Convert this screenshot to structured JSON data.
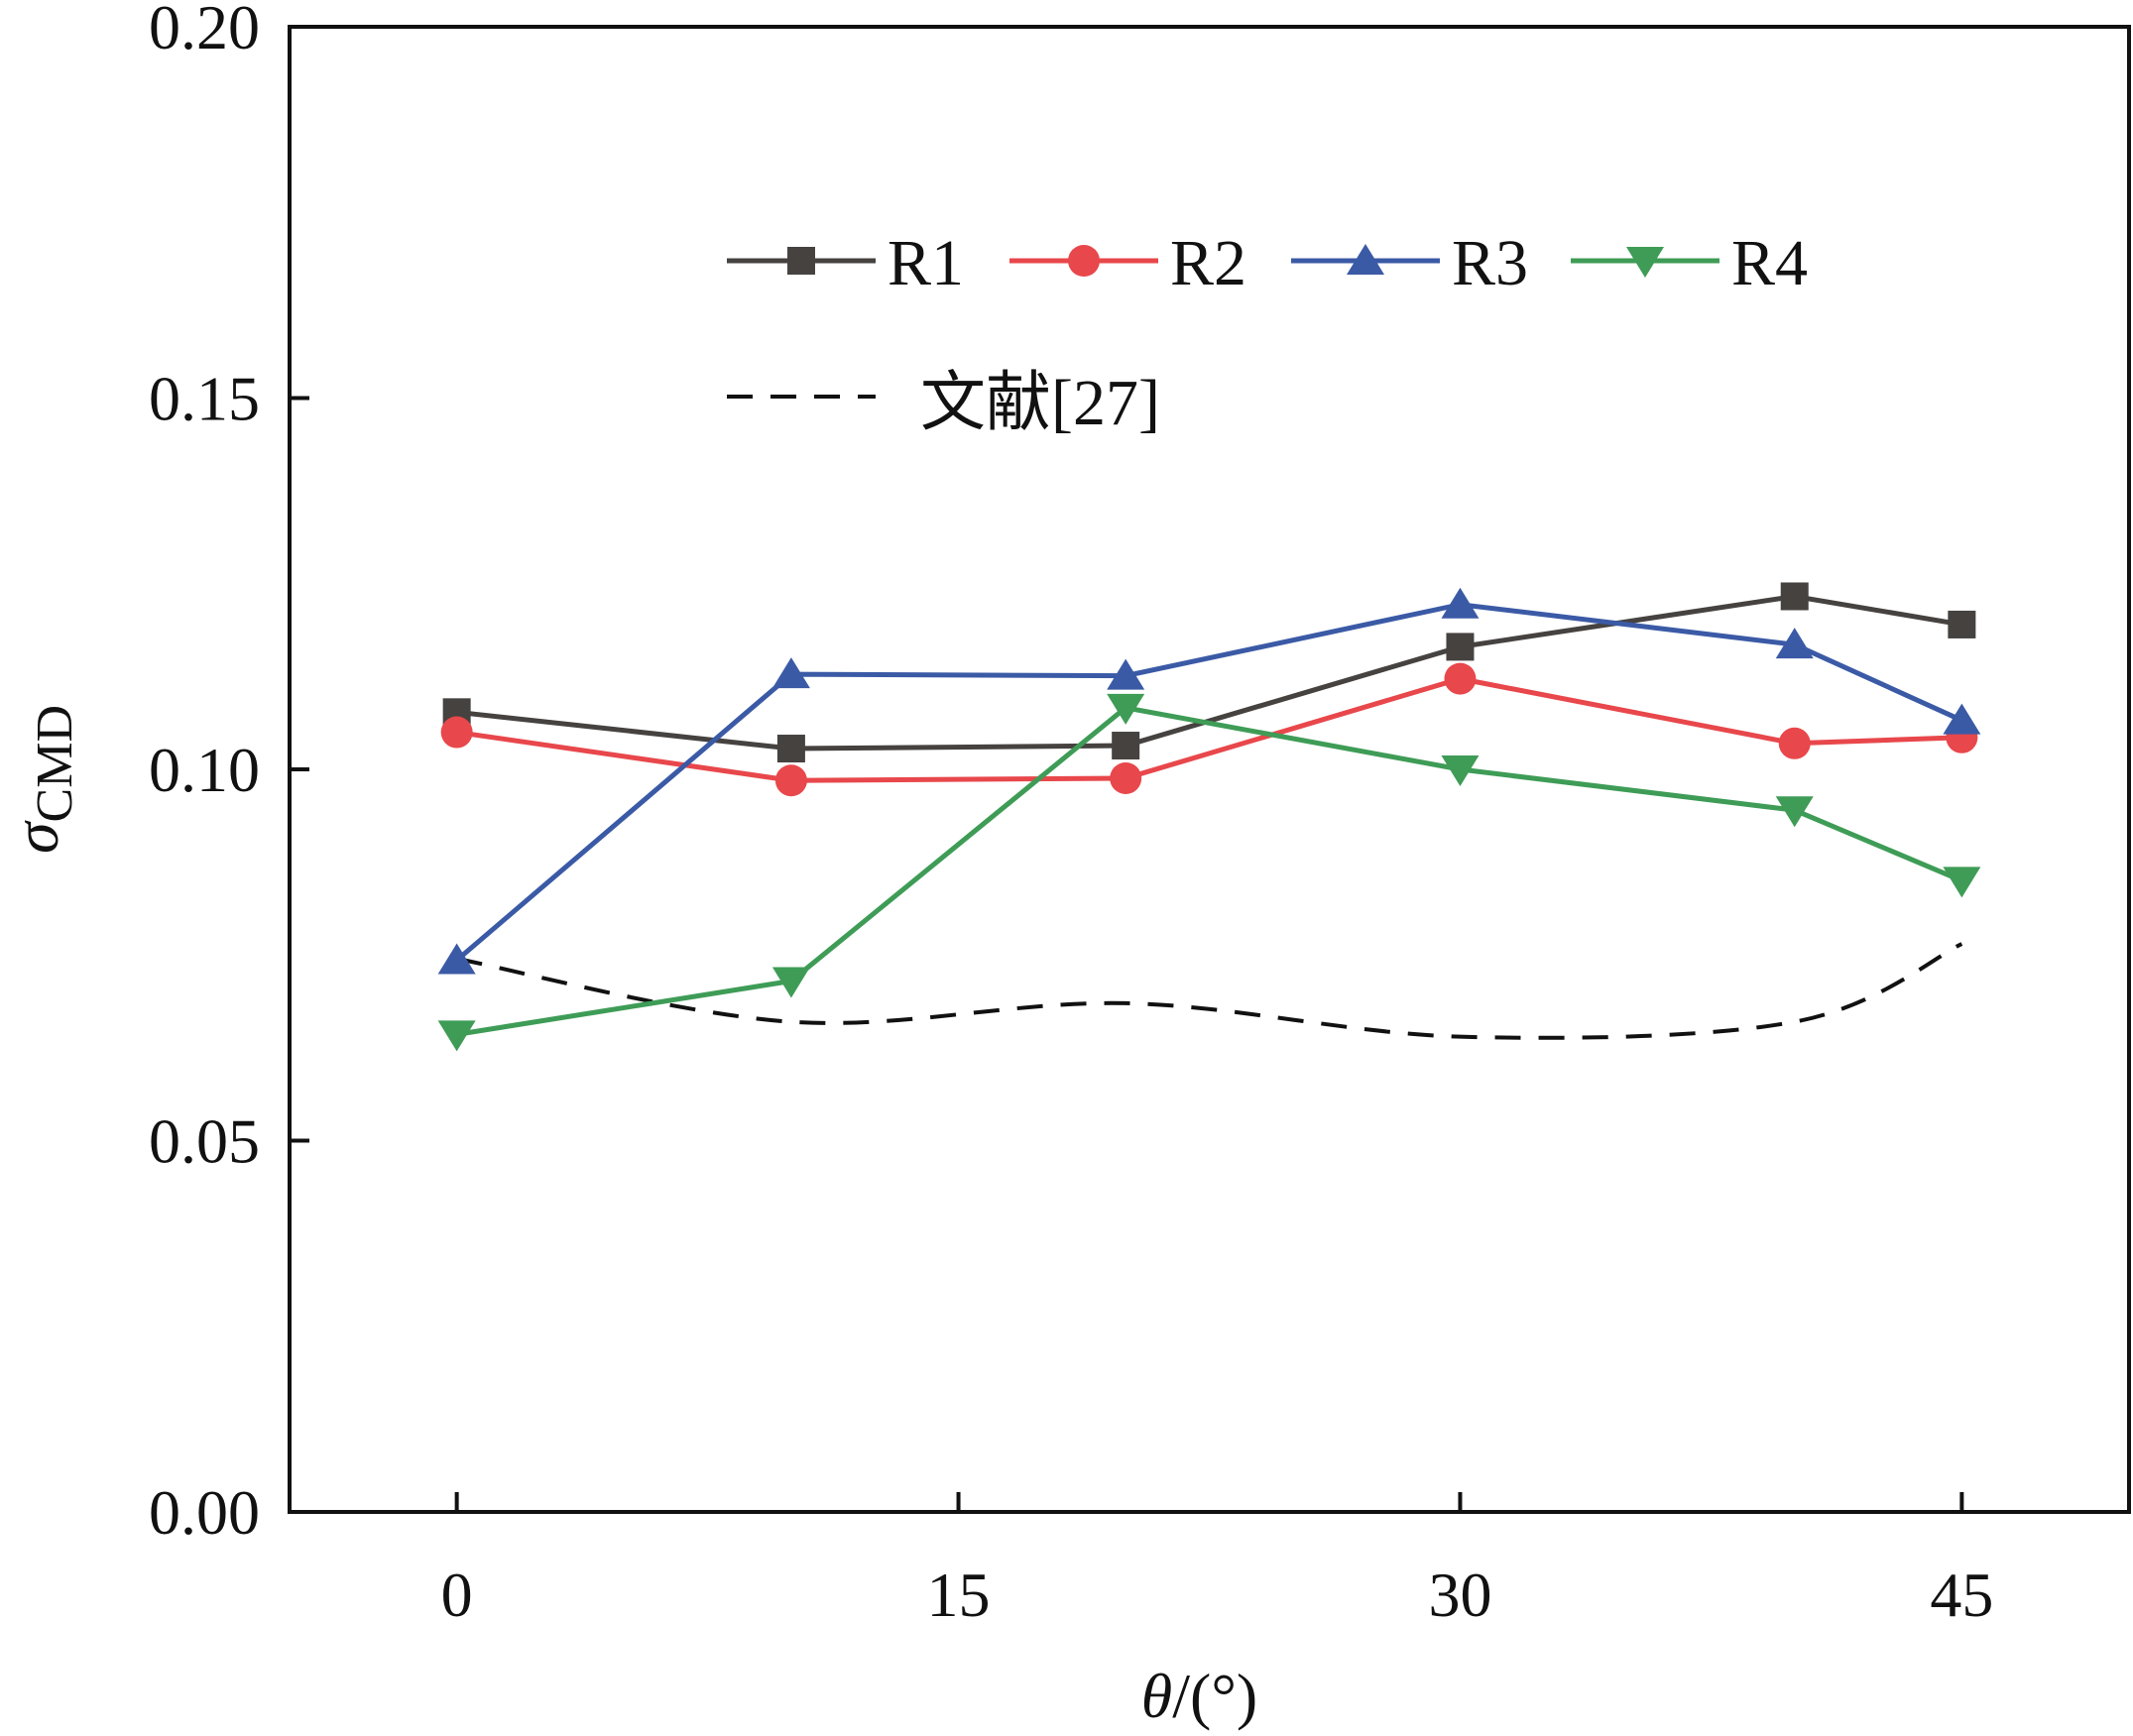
{
  "chart_data": {
    "type": "line",
    "xlabel_symbol": "θ",
    "xlabel_unit": "/(°)",
    "ylabel_symbol": "σ",
    "ylabel_sub": "CMD",
    "xlim": [
      -5,
      50
    ],
    "ylim": [
      0,
      0.2
    ],
    "xticks": [
      0,
      15,
      30,
      45
    ],
    "yticks": [
      0.0,
      0.05,
      0.1,
      0.15,
      0.2
    ],
    "ytick_labels": [
      "0.00",
      "0.05",
      "0.10",
      "0.15",
      "0.20"
    ],
    "xtick_labels": [
      "0",
      "15",
      "30",
      "45"
    ],
    "grid": false,
    "legend_position": "upper-center",
    "x": [
      0,
      10,
      20,
      30,
      40,
      45
    ],
    "series": [
      {
        "name": "R1",
        "color": "#454240",
        "marker": "square",
        "values": [
          0.1077,
          0.1028,
          0.1032,
          0.1165,
          0.1233,
          0.1195
        ]
      },
      {
        "name": "R2",
        "color": "#e8474b",
        "marker": "circle",
        "values": [
          0.105,
          0.0985,
          0.0988,
          0.1122,
          0.1035,
          0.1043
        ]
      },
      {
        "name": "R3",
        "color": "#3b5aa6",
        "marker": "triangle-up",
        "values": [
          0.0743,
          0.1128,
          0.1126,
          0.1222,
          0.1168,
          0.1066
        ]
      },
      {
        "name": "R4",
        "color": "#3e9c56",
        "marker": "triangle-down",
        "values": [
          0.0643,
          0.0715,
          0.1083,
          0.1,
          0.0945,
          0.085
        ]
      }
    ],
    "reference": {
      "name": "文献[27]",
      "color": "#111111",
      "style": "dashed",
      "x": [
        0,
        10,
        20,
        30,
        40,
        45
      ],
      "values": [
        0.0745,
        0.066,
        0.0685,
        0.064,
        0.066,
        0.0765
      ]
    }
  }
}
